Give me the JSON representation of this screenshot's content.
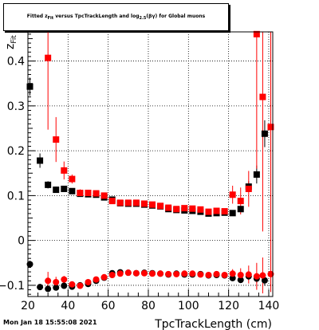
{
  "header": {
    "title_main": "Fitted z",
    "title_sub1": "Fit",
    "title_mid": " versus TpcTrackLength and log",
    "title_sub2": "2.5",
    "title_end": "(βγ) for Global muons"
  },
  "footer": {
    "timestamp": "Mon Jan 18 15:55:08 2021"
  },
  "chart_data": {
    "type": "scatter",
    "xlabel": "TpcTrackLength (cm)",
    "ylabel": "z",
    "ylabel_sub": "Fit",
    "xlim": [
      20,
      142
    ],
    "ylim": [
      -0.125,
      0.465
    ],
    "x_ticks": [
      20,
      40,
      60,
      80,
      100,
      120,
      140
    ],
    "y_ticks": [
      -0.1,
      0,
      0.1,
      0.2,
      0.3,
      0.4
    ],
    "y_tick_labels": [
      "−0.1",
      "0",
      "0.1",
      "0.2",
      "0.3",
      "0.4"
    ],
    "grid": true,
    "colors": {
      "black": "#000000",
      "red": "#ff0000"
    },
    "series": [
      {
        "color": "#000000",
        "marker": "square",
        "points": [
          [
            21,
            0.343,
            0.02
          ],
          [
            26,
            0.178,
            0.016
          ],
          [
            30,
            0.124,
            0.008
          ],
          [
            34,
            0.113,
            0.007
          ],
          [
            38,
            0.115,
            0.006
          ],
          [
            42,
            0.11,
            0.005
          ],
          [
            46,
            0.104,
            0.005
          ],
          [
            50,
            0.103,
            0.004
          ],
          [
            54,
            0.102,
            0.004
          ],
          [
            58,
            0.096,
            0.004
          ],
          [
            62,
            0.091,
            0.004
          ],
          [
            66,
            0.083,
            0.004
          ],
          [
            70,
            0.082,
            0.004
          ],
          [
            74,
            0.082,
            0.004
          ],
          [
            78,
            0.08,
            0.004
          ],
          [
            82,
            0.078,
            0.004
          ],
          [
            86,
            0.076,
            0.004
          ],
          [
            90,
            0.07,
            0.004
          ],
          [
            94,
            0.068,
            0.004
          ],
          [
            98,
            0.067,
            0.004
          ],
          [
            102,
            0.066,
            0.004
          ],
          [
            106,
            0.064,
            0.004
          ],
          [
            110,
            0.06,
            0.004
          ],
          [
            114,
            0.061,
            0.004
          ],
          [
            118,
            0.062,
            0.005
          ],
          [
            122,
            0.061,
            0.006
          ],
          [
            126,
            0.07,
            0.007
          ],
          [
            130,
            0.12,
            0.012
          ],
          [
            134,
            0.147,
            0.02
          ],
          [
            138,
            0.238,
            0.03
          ]
        ]
      },
      {
        "color": "#000000",
        "marker": "circle",
        "points": [
          [
            21,
            -0.053,
            0.008
          ],
          [
            26,
            -0.104,
            0.006
          ],
          [
            30,
            -0.108,
            0.005
          ],
          [
            34,
            -0.105,
            0.005
          ],
          [
            38,
            -0.101,
            0.005
          ],
          [
            42,
            -0.103,
            0.005
          ],
          [
            46,
            -0.1,
            0.005
          ],
          [
            50,
            -0.097,
            0.005
          ],
          [
            54,
            -0.09,
            0.005
          ],
          [
            58,
            -0.083,
            0.005
          ],
          [
            62,
            -0.073,
            0.005
          ],
          [
            66,
            -0.071,
            0.005
          ],
          [
            70,
            -0.072,
            0.005
          ],
          [
            74,
            -0.073,
            0.005
          ],
          [
            78,
            -0.072,
            0.005
          ],
          [
            82,
            -0.073,
            0.005
          ],
          [
            86,
            -0.074,
            0.005
          ],
          [
            90,
            -0.076,
            0.005
          ],
          [
            94,
            -0.074,
            0.005
          ],
          [
            98,
            -0.076,
            0.005
          ],
          [
            102,
            -0.076,
            0.005
          ],
          [
            106,
            -0.075,
            0.005
          ],
          [
            110,
            -0.078,
            0.005
          ],
          [
            114,
            -0.077,
            0.005
          ],
          [
            118,
            -0.078,
            0.005
          ],
          [
            122,
            -0.084,
            0.006
          ],
          [
            126,
            -0.088,
            0.007
          ],
          [
            130,
            -0.08,
            0.008
          ],
          [
            134,
            -0.085,
            0.01
          ],
          [
            138,
            -0.089,
            0.012
          ]
        ]
      },
      {
        "color": "#ff0000",
        "marker": "square",
        "points": [
          [
            30,
            0.407,
            0.16
          ],
          [
            34,
            0.225,
            0.05
          ],
          [
            38,
            0.156,
            0.02
          ],
          [
            42,
            0.137,
            0.01
          ],
          [
            46,
            0.106,
            0.008
          ],
          [
            50,
            0.106,
            0.006
          ],
          [
            54,
            0.105,
            0.005
          ],
          [
            58,
            0.1,
            0.005
          ],
          [
            62,
            0.088,
            0.004
          ],
          [
            66,
            0.084,
            0.004
          ],
          [
            70,
            0.084,
            0.004
          ],
          [
            74,
            0.084,
            0.004
          ],
          [
            78,
            0.082,
            0.004
          ],
          [
            82,
            0.08,
            0.004
          ],
          [
            86,
            0.077,
            0.004
          ],
          [
            90,
            0.073,
            0.004
          ],
          [
            94,
            0.07,
            0.004
          ],
          [
            98,
            0.072,
            0.004
          ],
          [
            102,
            0.071,
            0.004
          ],
          [
            106,
            0.069,
            0.004
          ],
          [
            110,
            0.064,
            0.004
          ],
          [
            114,
            0.066,
            0.004
          ],
          [
            118,
            0.065,
            0.006
          ],
          [
            122,
            0.102,
            0.02
          ],
          [
            126,
            0.088,
            0.03
          ],
          [
            130,
            0.115,
            0.04
          ],
          [
            134,
            0.46,
            0.3
          ],
          [
            137,
            0.32,
            0.3
          ],
          [
            141,
            0.253,
            0.3
          ]
        ]
      },
      {
        "color": "#ff0000",
        "marker": "circle",
        "points": [
          [
            30,
            -0.09,
            0.02
          ],
          [
            34,
            -0.093,
            0.012
          ],
          [
            38,
            -0.087,
            0.008
          ],
          [
            42,
            -0.098,
            0.006
          ],
          [
            46,
            -0.101,
            0.005
          ],
          [
            50,
            -0.093,
            0.005
          ],
          [
            54,
            -0.087,
            0.005
          ],
          [
            58,
            -0.082,
            0.005
          ],
          [
            62,
            -0.077,
            0.005
          ],
          [
            66,
            -0.074,
            0.005
          ],
          [
            70,
            -0.072,
            0.005
          ],
          [
            74,
            -0.073,
            0.005
          ],
          [
            78,
            -0.073,
            0.005
          ],
          [
            82,
            -0.074,
            0.005
          ],
          [
            86,
            -0.074,
            0.005
          ],
          [
            90,
            -0.075,
            0.005
          ],
          [
            94,
            -0.075,
            0.005
          ],
          [
            98,
            -0.074,
            0.005
          ],
          [
            102,
            -0.074,
            0.005
          ],
          [
            106,
            -0.076,
            0.005
          ],
          [
            110,
            -0.077,
            0.005
          ],
          [
            114,
            -0.075,
            0.005
          ],
          [
            118,
            -0.077,
            0.006
          ],
          [
            122,
            -0.074,
            0.01
          ],
          [
            126,
            -0.077,
            0.015
          ],
          [
            130,
            -0.076,
            0.02
          ],
          [
            134,
            -0.08,
            0.03
          ],
          [
            137,
            -0.078,
            0.04
          ],
          [
            141,
            -0.075,
            0.04
          ]
        ]
      }
    ]
  }
}
